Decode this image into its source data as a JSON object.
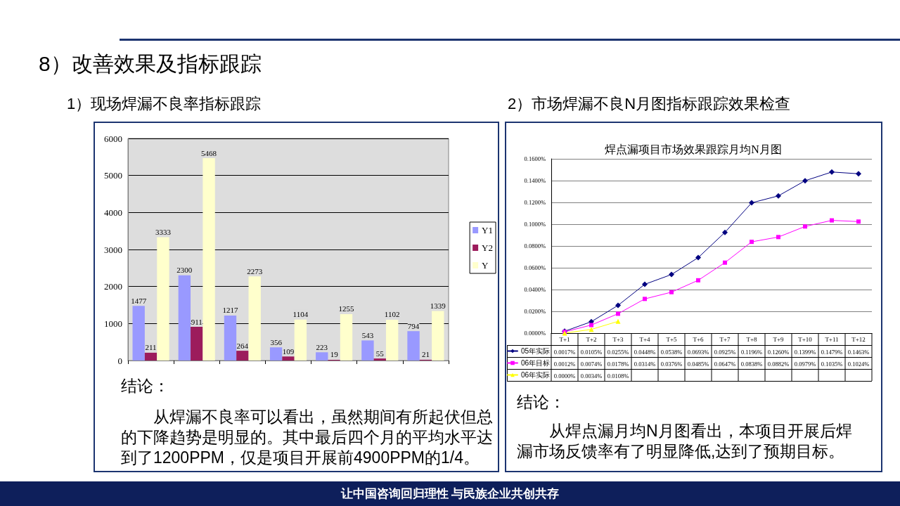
{
  "chart_data": [
    {
      "type": "bar",
      "title": "1）现场焊漏不良率指标跟踪",
      "categories": [
        null,
        null,
        null,
        null,
        null,
        null,
        null
      ],
      "series": [
        {
          "name": "Y1",
          "color": "#9999ff",
          "values": [
            1477,
            2300,
            1217,
            356,
            223,
            543,
            794
          ]
        },
        {
          "name": "Y2",
          "color": "#9c1c5c",
          "values": [
            211,
            911,
            264,
            109,
            19,
            55,
            21
          ]
        },
        {
          "name": "Y",
          "color": "#ffffcc",
          "values": [
            3333,
            5468,
            2273,
            1104,
            1255,
            1102,
            1339
          ]
        }
      ],
      "ylim": [
        0,
        6000
      ],
      "yticks": [
        0,
        1000,
        2000,
        3000,
        4000,
        5000,
        6000
      ],
      "grid": "y",
      "legend": "right",
      "data_labels": true,
      "annotations": [
        "8）改善效果及指标跟踪",
        "结论：",
        "从焊漏不良率可以看出，虽然期间有所起伏但总的下降趋势是明显的。其中最后四个月的平均水平达到了1200PPM，仅是项目开展前4900PPM的1/4。"
      ]
    },
    {
      "type": "line",
      "title": "2）市场焊漏不良N月图指标跟踪效果检查",
      "subtitle": "焊点漏项目市场效果跟踪月均N月图",
      "categories": [
        "T+1",
        "T+2",
        "T+3",
        "T+4",
        "T+5",
        "T+6",
        "T+7",
        "T+8",
        "T+9",
        "T+10",
        "T+11",
        "T+12"
      ],
      "series": [
        {
          "name": "05年实际",
          "color": "#000080",
          "marker": "diamond",
          "values": [
            0.0017,
            0.0105,
            0.0255,
            0.0448,
            0.0538,
            0.0693,
            0.0925,
            0.1196,
            0.126,
            0.1399,
            0.1479,
            0.1463
          ],
          "value_labels": [
            "0.0017%",
            "0.0105%",
            "0.0255%",
            "0.0448%",
            "0.0538%",
            "0.0693%",
            "0.0925%",
            "0.1196%",
            "0.1260%",
            "0.1399%",
            "0.1479%",
            "0.1463%"
          ]
        },
        {
          "name": "06年目标",
          "color": "#ff00ff",
          "marker": "square",
          "values": [
            0.0012,
            0.0074,
            0.0178,
            0.0314,
            0.0376,
            0.0485,
            0.0647,
            0.0838,
            0.0882,
            0.0979,
            0.1035,
            0.1024
          ],
          "value_labels": [
            "0.0012%",
            "0.0074%",
            "0.0178%",
            "0.0314%",
            "0.0376%",
            "0.0485%",
            "0.0647%",
            "0.0838%",
            "0.0882%",
            "0.0979%",
            "0.1035%",
            "0.1024%"
          ]
        },
        {
          "name": "06年实际",
          "color": "#ffff00",
          "marker": "triangle",
          "values": [
            0,
            0.0034,
            0.0108,
            null,
            null,
            null,
            null,
            null,
            null,
            null,
            null,
            null
          ],
          "value_labels": [
            "0.0000%",
            "0.0034%",
            "0.0108%",
            null,
            null,
            null,
            null,
            null,
            null,
            null,
            null,
            null
          ]
        }
      ],
      "ylim": [
        0,
        0.16
      ],
      "yticks": [
        {
          "value": 0,
          "label": "0.0000%"
        },
        {
          "value": 0.02,
          "label": "0.0200%"
        },
        {
          "value": 0.04,
          "label": "0.0400%"
        },
        {
          "value": 0.06,
          "label": "0.0600%"
        },
        {
          "value": 0.08,
          "label": "0.0800%"
        },
        {
          "value": 0.1,
          "label": "0.1000%"
        },
        {
          "value": 0.12,
          "label": "0.1200%"
        },
        {
          "value": 0.14,
          "label": "0.1400%"
        },
        {
          "value": 0.16,
          "label": "0.1600%"
        }
      ],
      "grid": "y",
      "legend": "bottom left",
      "annotations": [
        "结论：",
        "从焊点漏月均N月图看出，本项目开展后焊漏市场反馈率有了明显降低,达到了预期目标。",
        "让中国咨询回归理性 与民族企业共创共存"
      ]
    }
  ]
}
